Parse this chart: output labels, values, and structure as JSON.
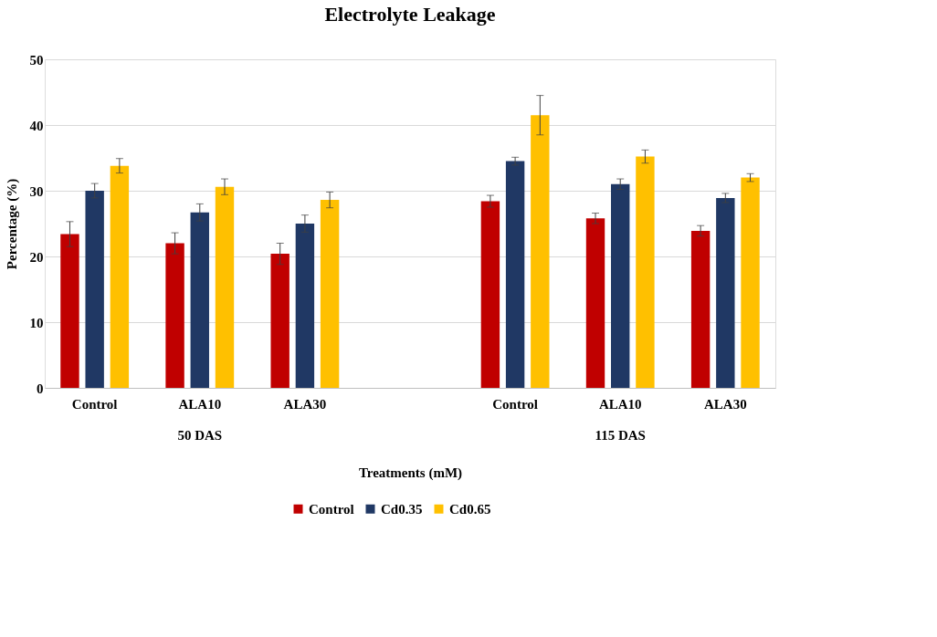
{
  "chart_data": {
    "type": "bar",
    "title": "Electrolyte Leakage",
    "xlabel": "Treatments (mM)",
    "ylabel": "Percentage (%)",
    "categories": [
      "Control",
      "ALA10",
      "ALA30",
      null,
      "Control",
      "ALA10",
      "ALA30"
    ],
    "annotations": [
      "50 DAS",
      "115 DAS"
    ],
    "series": [
      {
        "name": "Control",
        "color": "#c00000",
        "values": [
          23.4,
          22.0,
          20.4,
          null,
          28.4,
          25.8,
          23.9
        ],
        "errors": [
          1.9,
          1.6,
          1.6,
          null,
          0.9,
          0.8,
          0.8
        ]
      },
      {
        "name": "Cd0.35",
        "color": "#203864",
        "values": [
          30.0,
          26.7,
          25.0,
          null,
          34.5,
          31.0,
          28.9
        ],
        "errors": [
          1.1,
          1.3,
          1.3,
          null,
          0.6,
          0.8,
          0.7
        ]
      },
      {
        "name": "Cd0.65",
        "color": "#ffc000",
        "values": [
          33.8,
          30.6,
          28.6,
          null,
          41.5,
          35.2,
          32.0
        ],
        "errors": [
          1.1,
          1.2,
          1.2,
          null,
          3.0,
          1.0,
          0.6
        ]
      }
    ],
    "ylim": [
      0,
      50
    ],
    "yticks": [
      0,
      10,
      20,
      30,
      40,
      50
    ],
    "grid": "y",
    "legend": "bottom"
  }
}
